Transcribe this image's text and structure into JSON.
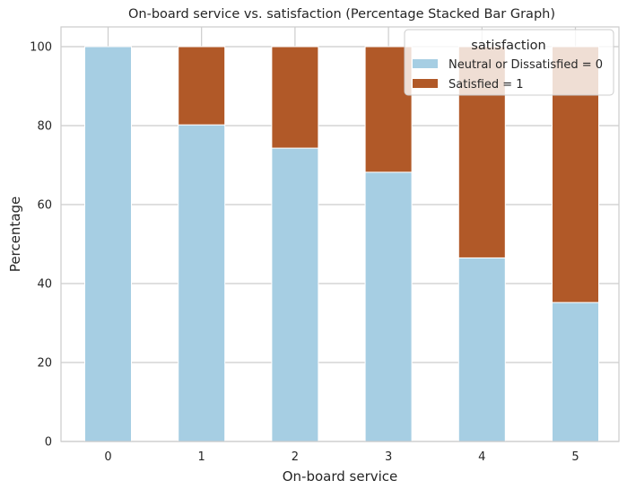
{
  "chart_data": {
    "type": "bar",
    "stacked": true,
    "title": "On-board service vs. satisfaction (Percentage Stacked Bar Graph)",
    "xlabel": "On-board service",
    "ylabel": "Percentage",
    "categories": [
      "0",
      "1",
      "2",
      "3",
      "4",
      "5"
    ],
    "ylim": [
      0,
      105
    ],
    "yticks": [
      "0",
      "20",
      "40",
      "60",
      "80",
      "100"
    ],
    "grid": true,
    "legend": {
      "title": "satisfaction",
      "placement": "top-right"
    },
    "series": [
      {
        "name": "Neutral or Dissatisfied = 0",
        "color": "#a6cee3",
        "values": [
          100,
          80.2,
          74.3,
          68.2,
          46.5,
          35.2
        ]
      },
      {
        "name": "Satisfied = 1",
        "color": "#b15928",
        "values": [
          0,
          19.8,
          25.7,
          31.8,
          53.5,
          64.8
        ]
      }
    ]
  }
}
